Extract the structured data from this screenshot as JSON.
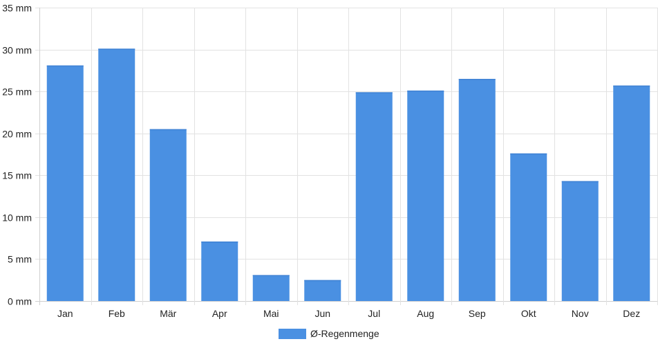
{
  "chart_data": {
    "type": "bar",
    "categories": [
      "Jan",
      "Feb",
      "Mär",
      "Apr",
      "Mai",
      "Jun",
      "Jul",
      "Aug",
      "Sep",
      "Okt",
      "Nov",
      "Dez"
    ],
    "series": [
      {
        "name": "Ø-Regenmenge",
        "color": "#4a90e2",
        "values": [
          28.1,
          30.1,
          20.5,
          7.1,
          3.1,
          2.5,
          24.9,
          25.1,
          26.5,
          17.6,
          14.3,
          25.7
        ]
      }
    ],
    "ylim": [
      0,
      35
    ],
    "yticks": [
      0,
      5,
      10,
      15,
      20,
      25,
      30,
      35
    ],
    "ytick_labels": [
      "0 mm",
      "5 mm",
      "10 mm",
      "15 mm",
      "20 mm",
      "25 mm",
      "30 mm",
      "35 mm"
    ],
    "grid": true,
    "legend_position": "bottom-center",
    "title": "",
    "xlabel": "",
    "ylabel": ""
  }
}
